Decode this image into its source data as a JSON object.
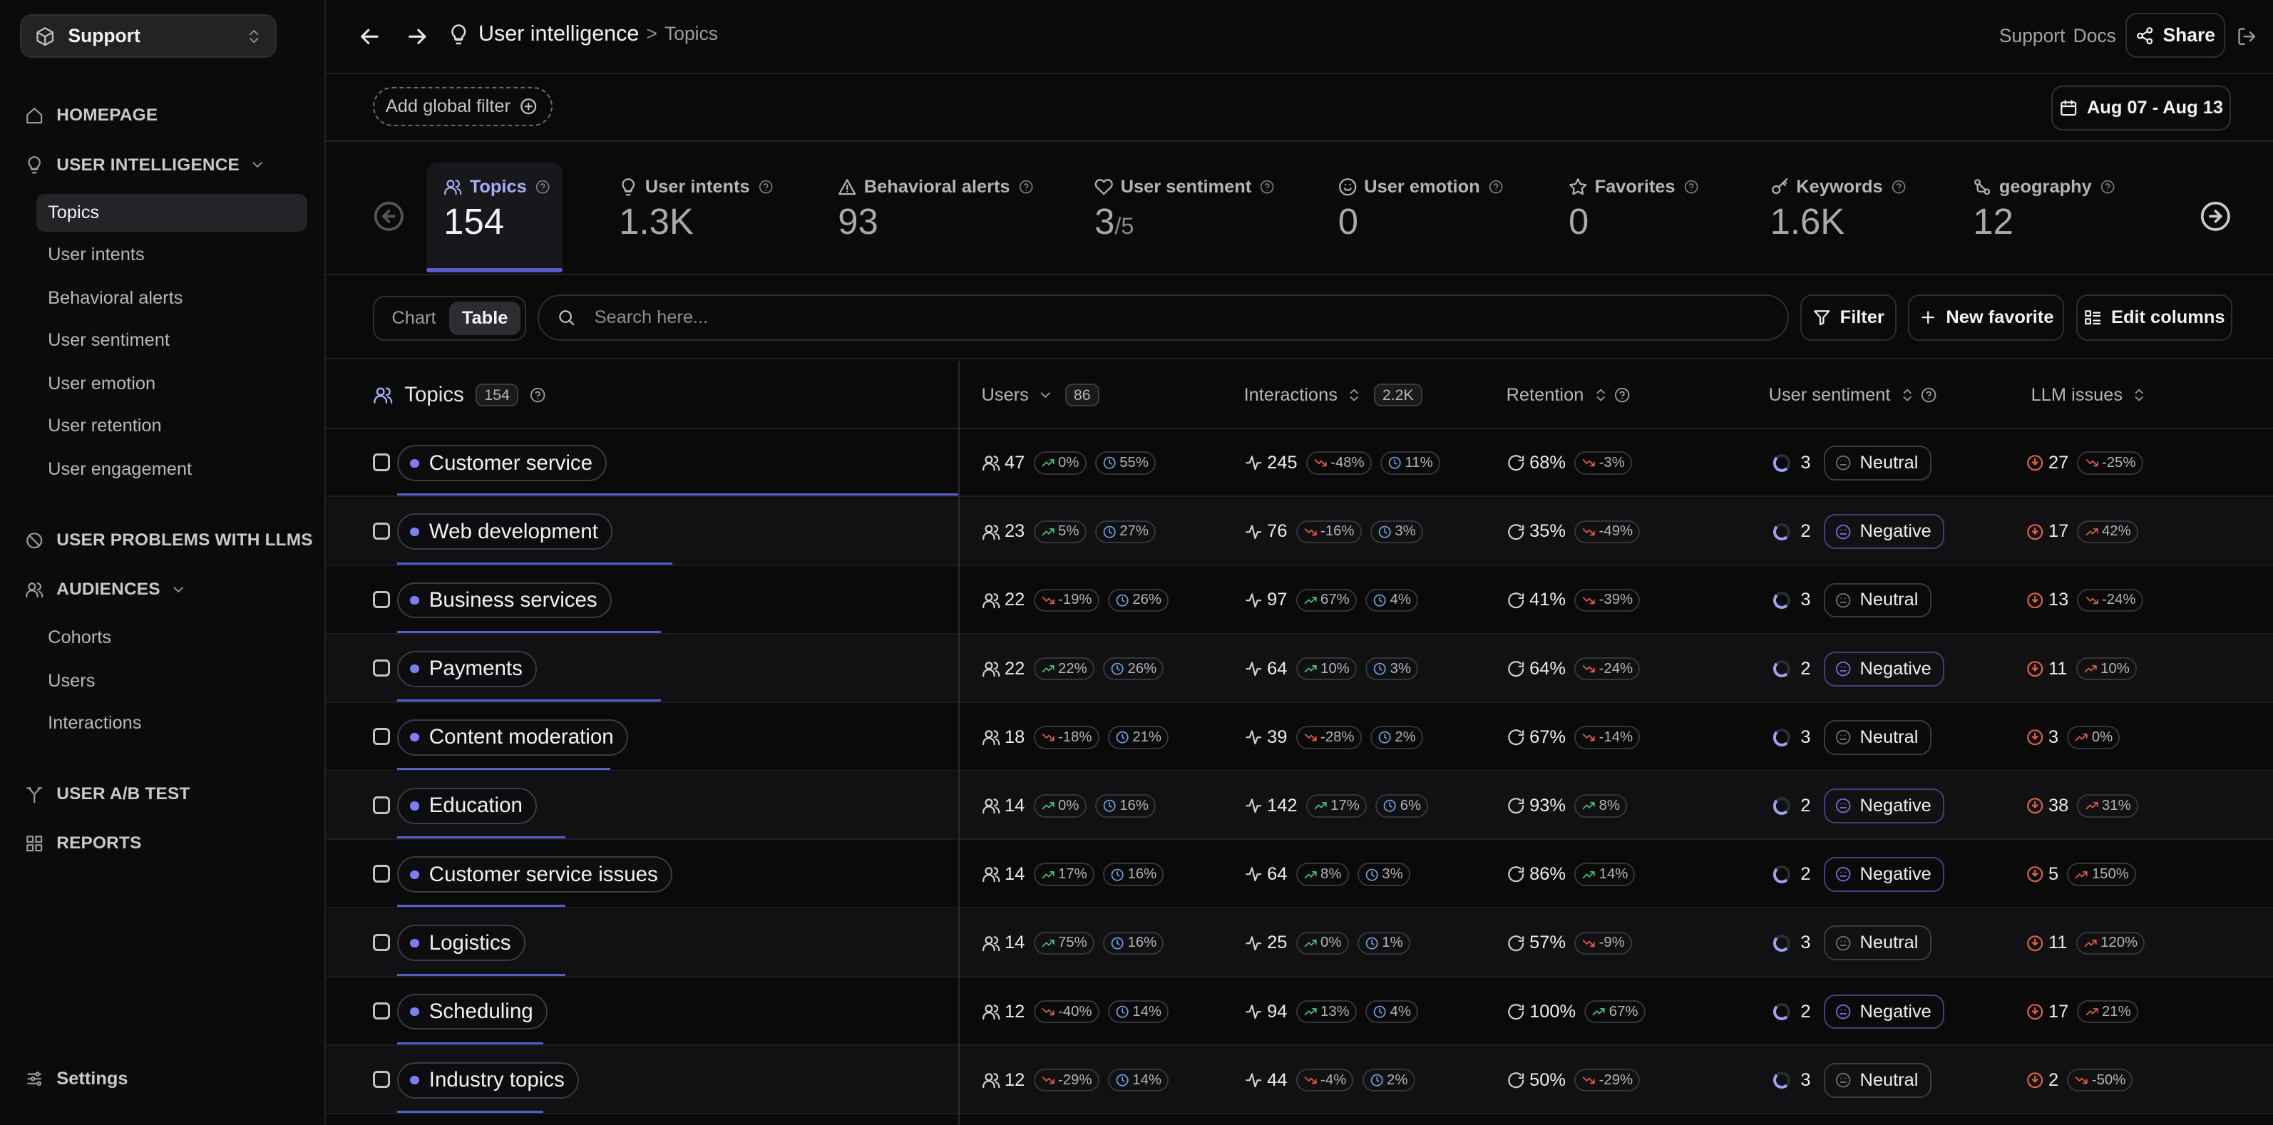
{
  "workspace": {
    "name": "Support"
  },
  "sidebar": {
    "homepage": "HOMEPAGE",
    "user_intelligence": "USER INTELLIGENCE",
    "ui_items": [
      "Topics",
      "User intents",
      "Behavioral alerts",
      "User sentiment",
      "User emotion",
      "User retention",
      "User engagement"
    ],
    "user_problems": "USER PROBLEMS WITH LLMS",
    "audiences": "AUDIENCES",
    "aud_items": [
      "Cohorts",
      "Users",
      "Interactions"
    ],
    "ab_test": "USER A/B TEST",
    "reports": "REPORTS",
    "settings": "Settings"
  },
  "header": {
    "title": "User intelligence",
    "sep": ">",
    "sub": "Topics",
    "support": "Support",
    "docs": "Docs",
    "share": "Share"
  },
  "filters": {
    "global": "Add global filter",
    "date": "Aug 07 - Aug 13"
  },
  "metrics": [
    {
      "label": "Topics",
      "value": "154",
      "icon": "users-icon"
    },
    {
      "label": "User intents",
      "value": "1.3K",
      "icon": "lightbulb-icon"
    },
    {
      "label": "Behavioral alerts",
      "value": "93",
      "icon": "warning-icon"
    },
    {
      "label": "User sentiment",
      "value": "3",
      "suffix": "/5",
      "icon": "heart-icon"
    },
    {
      "label": "User emotion",
      "value": "0",
      "icon": "smile-icon"
    },
    {
      "label": "Favorites",
      "value": "0",
      "icon": "star-icon"
    },
    {
      "label": "Keywords",
      "value": "1.6K",
      "icon": "key-icon"
    },
    {
      "label": "geography",
      "value": "12",
      "icon": "geography-icon"
    }
  ],
  "toolbar": {
    "chart": "Chart",
    "table": "Table",
    "search_placeholder": "Search here...",
    "filter": "Filter",
    "new_favorite": "New favorite",
    "edit_columns": "Edit columns"
  },
  "table": {
    "topics_header": "Topics",
    "topics_count": "154",
    "columns": [
      {
        "label": "Users",
        "count": "86"
      },
      {
        "label": "Interactions",
        "count": "2.2K"
      },
      {
        "label": "Retention"
      },
      {
        "label": "User sentiment"
      },
      {
        "label": "LLM issues"
      }
    ],
    "rows": [
      {
        "topic": "Customer service",
        "share": 1.0,
        "users": "47",
        "u_chg": "0%",
        "u_chg_dir": "up",
        "u_pct": "55%",
        "inter": "245",
        "i_chg": "-48%",
        "i_chg_dir": "down",
        "i_pct": "11%",
        "ret": "68%",
        "r_chg": "-3%",
        "r_chg_dir": "down",
        "sent": "3",
        "sent_label": "Neutral",
        "llm": "27",
        "l_chg": "-25%",
        "l_chg_dir": "down"
      },
      {
        "topic": "Web development",
        "share": 0.49,
        "users": "23",
        "u_chg": "5%",
        "u_chg_dir": "up",
        "u_pct": "27%",
        "inter": "76",
        "i_chg": "-16%",
        "i_chg_dir": "down",
        "i_pct": "3%",
        "ret": "35%",
        "r_chg": "-49%",
        "r_chg_dir": "down",
        "sent": "2",
        "sent_label": "Negative",
        "llm": "17",
        "l_chg": "42%",
        "l_chg_dir": "up"
      },
      {
        "topic": "Business services",
        "share": 0.47,
        "users": "22",
        "u_chg": "-19%",
        "u_chg_dir": "down",
        "u_pct": "26%",
        "inter": "97",
        "i_chg": "67%",
        "i_chg_dir": "up",
        "i_pct": "4%",
        "ret": "41%",
        "r_chg": "-39%",
        "r_chg_dir": "down",
        "sent": "3",
        "sent_label": "Neutral",
        "llm": "13",
        "l_chg": "-24%",
        "l_chg_dir": "down"
      },
      {
        "topic": "Payments",
        "share": 0.47,
        "users": "22",
        "u_chg": "22%",
        "u_chg_dir": "up",
        "u_pct": "26%",
        "inter": "64",
        "i_chg": "10%",
        "i_chg_dir": "up",
        "i_pct": "3%",
        "ret": "64%",
        "r_chg": "-24%",
        "r_chg_dir": "down",
        "sent": "2",
        "sent_label": "Negative",
        "llm": "11",
        "l_chg": "10%",
        "l_chg_dir": "up"
      },
      {
        "topic": "Content moderation",
        "share": 0.38,
        "users": "18",
        "u_chg": "-18%",
        "u_chg_dir": "down",
        "u_pct": "21%",
        "inter": "39",
        "i_chg": "-28%",
        "i_chg_dir": "down",
        "i_pct": "2%",
        "ret": "67%",
        "r_chg": "-14%",
        "r_chg_dir": "down",
        "sent": "3",
        "sent_label": "Neutral",
        "llm": "3",
        "l_chg": "0%",
        "l_chg_dir": "up"
      },
      {
        "topic": "Education",
        "share": 0.3,
        "users": "14",
        "u_chg": "0%",
        "u_chg_dir": "up",
        "u_pct": "16%",
        "inter": "142",
        "i_chg": "17%",
        "i_chg_dir": "up",
        "i_pct": "6%",
        "ret": "93%",
        "r_chg": "8%",
        "r_chg_dir": "up",
        "sent": "2",
        "sent_label": "Negative",
        "llm": "38",
        "l_chg": "31%",
        "l_chg_dir": "up"
      },
      {
        "topic": "Customer service issues",
        "share": 0.3,
        "users": "14",
        "u_chg": "17%",
        "u_chg_dir": "up",
        "u_pct": "16%",
        "inter": "64",
        "i_chg": "8%",
        "i_chg_dir": "up",
        "i_pct": "3%",
        "ret": "86%",
        "r_chg": "14%",
        "r_chg_dir": "up",
        "sent": "2",
        "sent_label": "Negative",
        "llm": "5",
        "l_chg": "150%",
        "l_chg_dir": "up"
      },
      {
        "topic": "Logistics",
        "share": 0.3,
        "users": "14",
        "u_chg": "75%",
        "u_chg_dir": "up",
        "u_pct": "16%",
        "inter": "25",
        "i_chg": "0%",
        "i_chg_dir": "up",
        "i_pct": "1%",
        "ret": "57%",
        "r_chg": "-9%",
        "r_chg_dir": "down",
        "sent": "3",
        "sent_label": "Neutral",
        "llm": "11",
        "l_chg": "120%",
        "l_chg_dir": "up"
      },
      {
        "topic": "Scheduling",
        "share": 0.26,
        "users": "12",
        "u_chg": "-40%",
        "u_chg_dir": "down",
        "u_pct": "14%",
        "inter": "94",
        "i_chg": "13%",
        "i_chg_dir": "up",
        "i_pct": "4%",
        "ret": "100%",
        "r_chg": "67%",
        "r_chg_dir": "up",
        "sent": "2",
        "sent_label": "Negative",
        "llm": "17",
        "l_chg": "21%",
        "l_chg_dir": "up"
      },
      {
        "topic": "Industry topics",
        "share": 0.26,
        "users": "12",
        "u_chg": "-29%",
        "u_chg_dir": "down",
        "u_pct": "14%",
        "inter": "44",
        "i_chg": "-4%",
        "i_chg_dir": "down",
        "i_pct": "2%",
        "ret": "50%",
        "r_chg": "-29%",
        "r_chg_dir": "down",
        "sent": "3",
        "sent_label": "Neutral",
        "llm": "2",
        "l_chg": "-50%",
        "l_chg_dir": "down"
      }
    ]
  }
}
